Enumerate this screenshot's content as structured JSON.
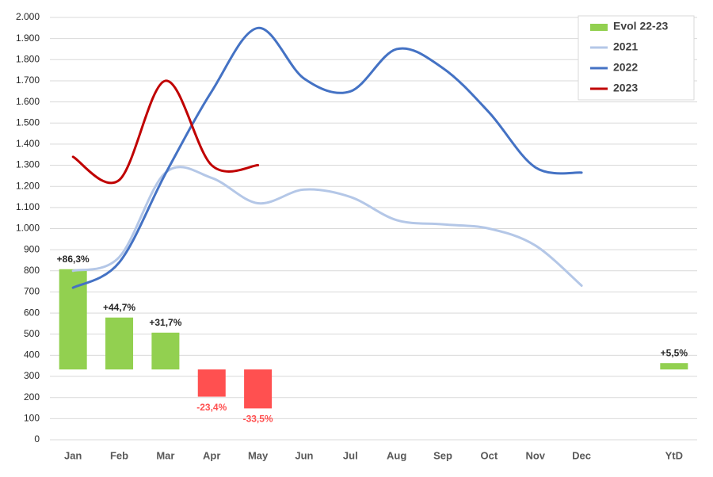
{
  "chart_data": {
    "type": "line",
    "categories": [
      "Jan",
      "Feb",
      "Mar",
      "Apr",
      "May",
      "Jun",
      "Jul",
      "Aug",
      "Sep",
      "Oct",
      "Nov",
      "Dec",
      null,
      "YtD"
    ],
    "series": [
      {
        "name": "Evol 22-23",
        "type": "bar",
        "axis": "y2",
        "color": "#92d050",
        "negative_color": "#ff5050",
        "values": [
          86.3,
          44.7,
          31.7,
          -23.4,
          -33.5,
          null,
          null,
          null,
          null,
          null,
          null,
          null,
          null,
          5.5
        ],
        "value_labels": [
          "+86,3%",
          "+44,7%",
          "+31,7%",
          "-23,4%",
          "-33,5%",
          null,
          null,
          null,
          null,
          null,
          null,
          null,
          null,
          "+5,5%"
        ]
      },
      {
        "name": "2021",
        "color": "#b4c7e7",
        "values": [
          800,
          865,
          1265,
          1240,
          1120,
          1185,
          1150,
          1040,
          1020,
          1000,
          920,
          730,
          null,
          null
        ]
      },
      {
        "name": "2022",
        "color": "#4472c4",
        "values": [
          720,
          840,
          1260,
          1650,
          1950,
          1710,
          1650,
          1850,
          1760,
          1550,
          1290,
          1265,
          null,
          null
        ]
      },
      {
        "name": "2023",
        "color": "#c00000",
        "values": [
          1340,
          1230,
          1700,
          1300,
          1300,
          null,
          null,
          null,
          null,
          null,
          null,
          null,
          null,
          null
        ]
      }
    ],
    "ylim": [
      0,
      2000
    ],
    "yticks": [
      0,
      100,
      200,
      300,
      400,
      500,
      600,
      700,
      800,
      900,
      {
        "value": 1000,
        "label": "1.000"
      },
      {
        "value": 1100,
        "label": "1.100"
      },
      {
        "value": 1200,
        "label": "1.200"
      },
      {
        "value": 1300,
        "label": "1.300"
      },
      {
        "value": 1400,
        "label": "1.400"
      },
      {
        "value": 1500,
        "label": "1.500"
      },
      {
        "value": 1600,
        "label": "1.600"
      },
      {
        "value": 1700,
        "label": "1.700"
      },
      {
        "value": 1800,
        "label": "1.800"
      },
      {
        "value": 1900,
        "label": "1.900"
      },
      {
        "value": 2000,
        "label": "2.000"
      }
    ],
    "y2lim": [
      -60.5,
      303
    ],
    "grid": true,
    "legend": "top-right"
  }
}
